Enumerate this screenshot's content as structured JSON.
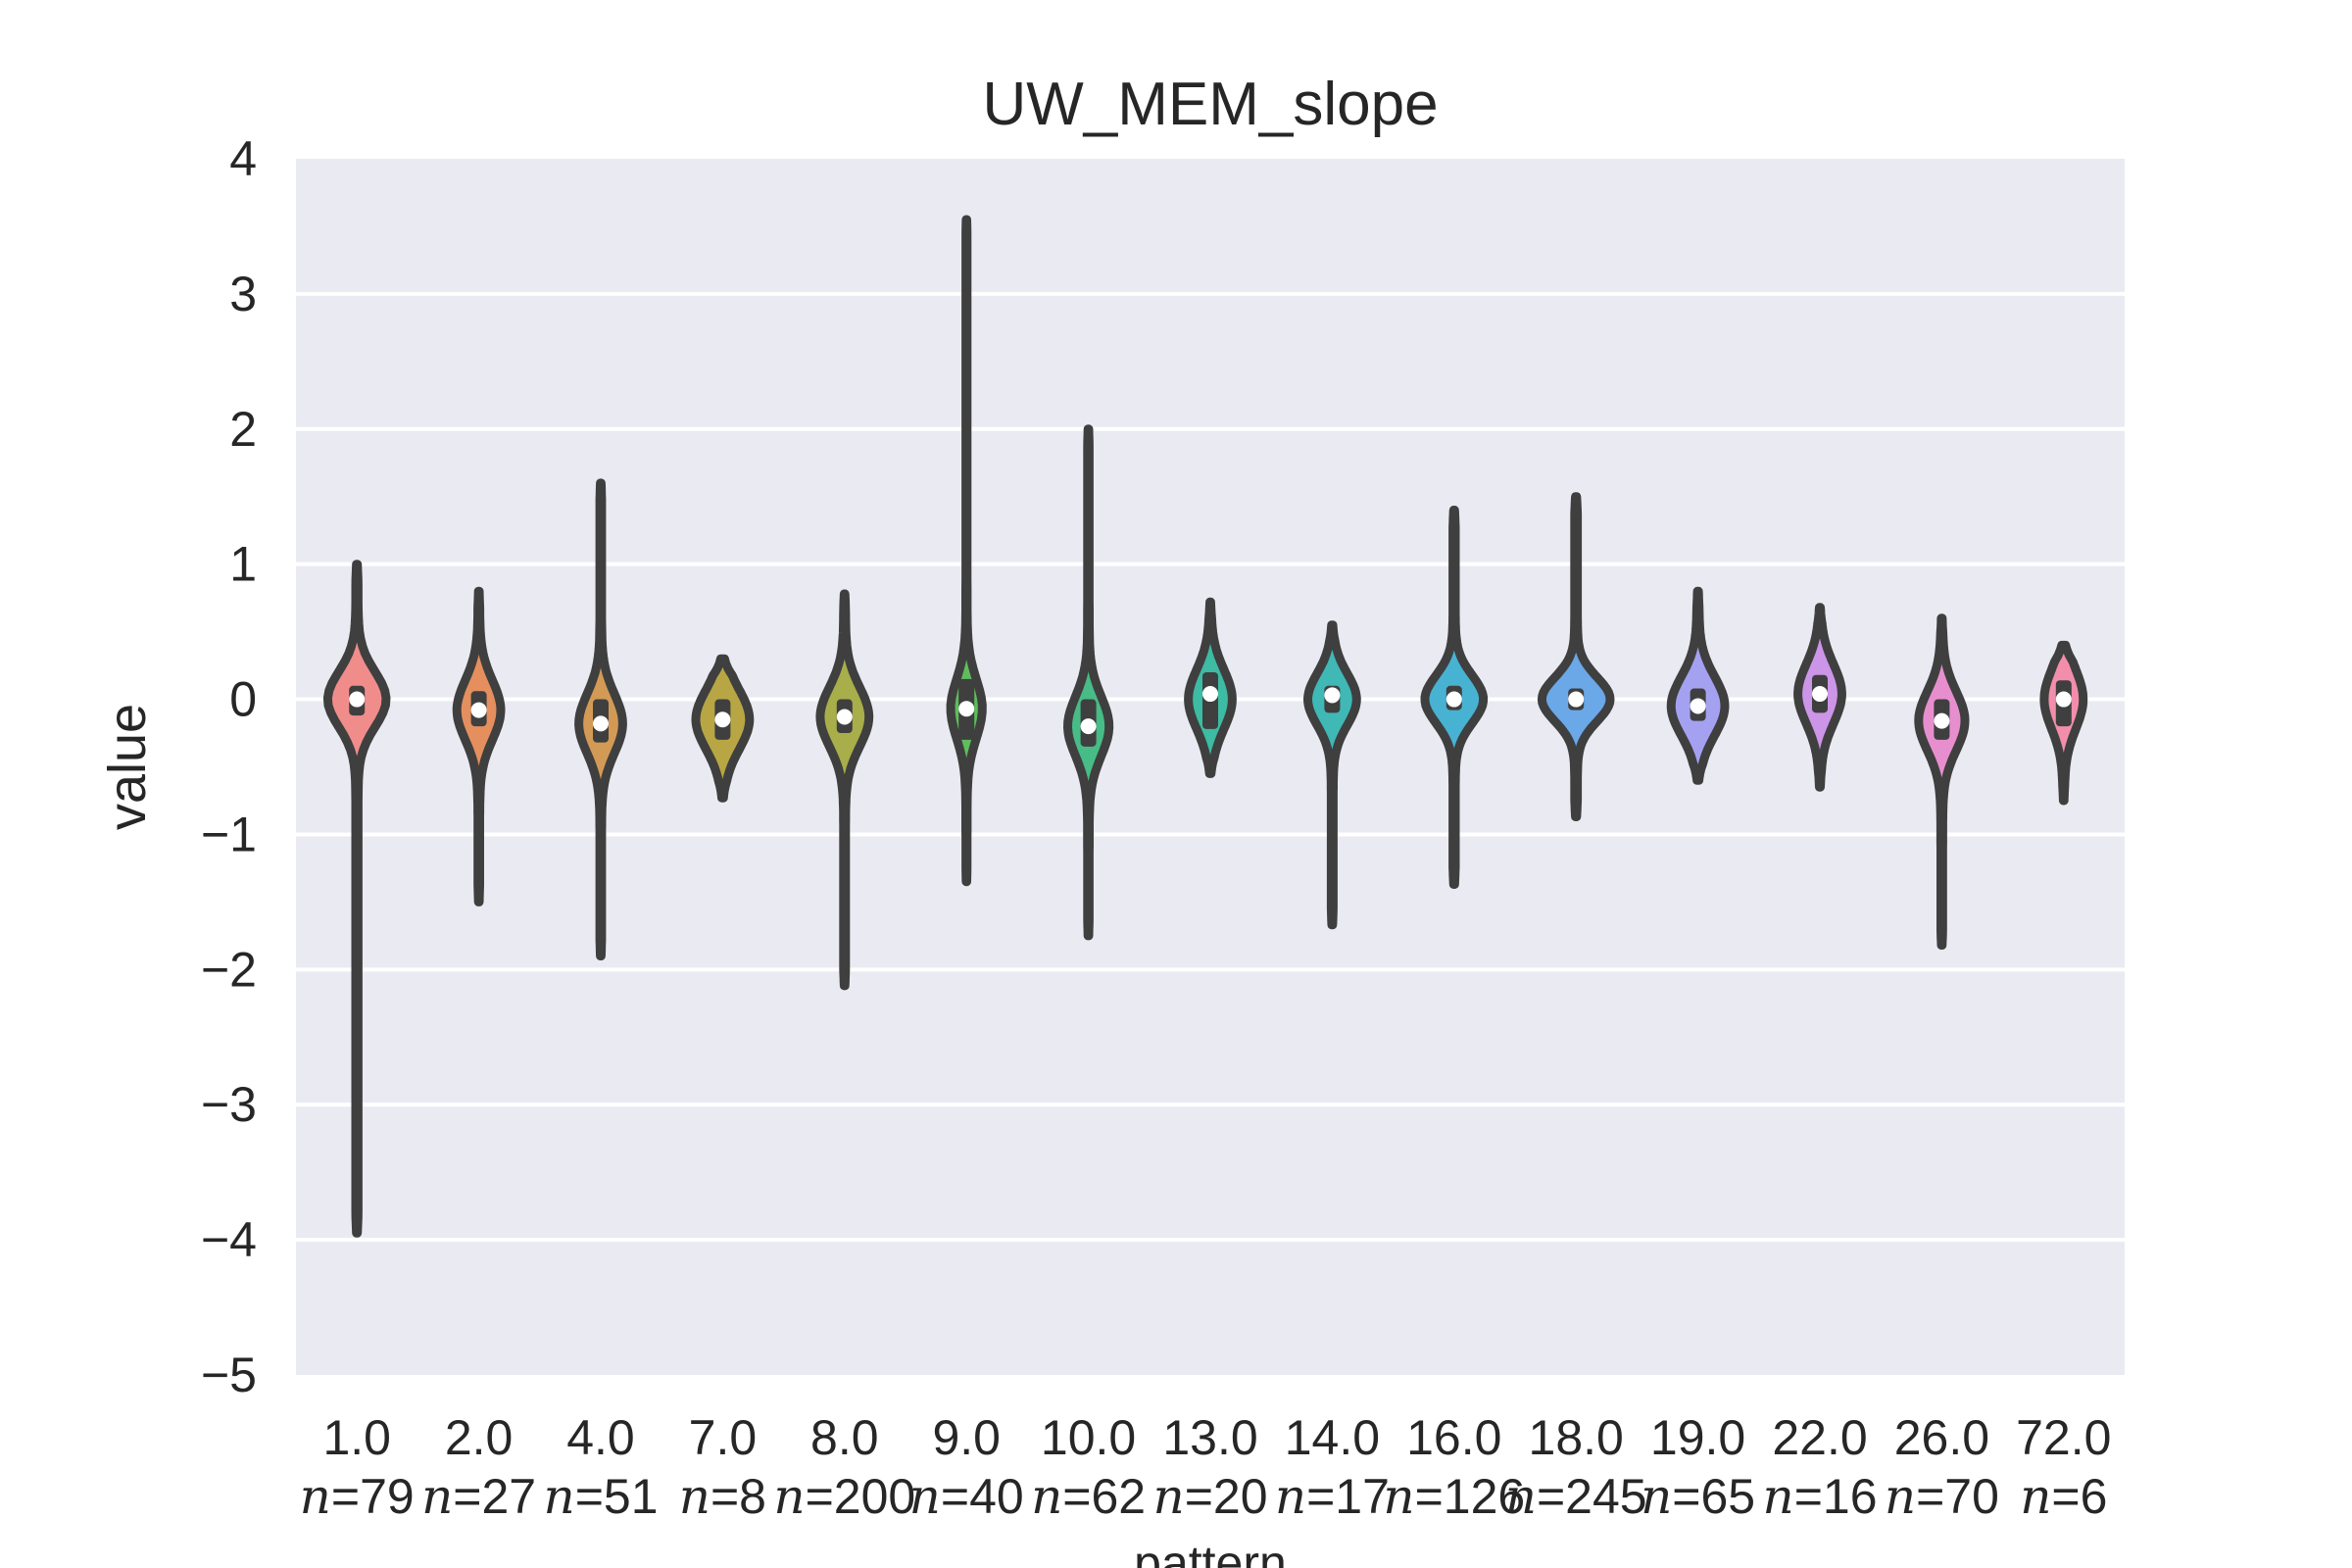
{
  "chart_data": {
    "type": "violin",
    "title": "UW_MEM_slope",
    "xlabel": "pattern",
    "ylabel": "value",
    "ylim": [
      -5,
      4
    ],
    "yticks": [
      4,
      3,
      2,
      1,
      0,
      -1,
      -2,
      -3,
      -4,
      -5
    ],
    "ytick_labels": [
      "4",
      "3",
      "2",
      "1",
      "0",
      "−1",
      "−2",
      "−3",
      "−4",
      "−5"
    ],
    "grid": true,
    "categories": [
      {
        "label": "1.0",
        "n_prefix": "n",
        "n_value": "=79",
        "color": "#f08d8b",
        "min": -3.95,
        "max": 1.0,
        "median": 0.0,
        "q1": -0.12,
        "q3": 0.1,
        "peak": 0.0,
        "maxw": 0.48
      },
      {
        "label": "2.0",
        "n_prefix": "n",
        "n_value": "=27",
        "color": "#e58f5f",
        "min": -1.5,
        "max": 0.8,
        "median": -0.08,
        "q1": -0.2,
        "q3": 0.06,
        "peak": -0.08,
        "maxw": 0.36
      },
      {
        "label": "4.0",
        "n_prefix": "n",
        "n_value": "=51",
        "color": "#d39a56",
        "min": -1.9,
        "max": 1.6,
        "median": -0.18,
        "q1": -0.32,
        "q3": 0.0,
        "peak": -0.18,
        "maxw": 0.36
      },
      {
        "label": "7.0",
        "n_prefix": "n",
        "n_value": "=8",
        "color": "#b8a644",
        "min": -0.73,
        "max": 0.3,
        "median": -0.15,
        "q1": -0.3,
        "q3": 0.0,
        "peak": -0.15,
        "maxw": 0.44
      },
      {
        "label": "8.0",
        "n_prefix": "n",
        "n_value": "=200",
        "color": "#a8ae4a",
        "min": -2.12,
        "max": 0.78,
        "median": -0.13,
        "q1": -0.25,
        "q3": 0.0,
        "peak": -0.13,
        "maxw": 0.4
      },
      {
        "label": "9.0",
        "n_prefix": "n",
        "n_value": "=40",
        "color": "#5fbd5c",
        "min": -1.35,
        "max": 3.55,
        "median": -0.07,
        "q1": -0.3,
        "q3": 0.15,
        "peak": -0.07,
        "maxw": 0.26
      },
      {
        "label": "10.0",
        "n_prefix": "n",
        "n_value": "=62",
        "color": "#48bc86",
        "min": -1.75,
        "max": 2.0,
        "median": -0.2,
        "q1": -0.35,
        "q3": 0.0,
        "peak": -0.2,
        "maxw": 0.34
      },
      {
        "label": "13.0",
        "n_prefix": "n",
        "n_value": "=20",
        "color": "#3dbba3",
        "min": -0.55,
        "max": 0.72,
        "median": 0.04,
        "q1": -0.22,
        "q3": 0.2,
        "peak": 0.0,
        "maxw": 0.36
      },
      {
        "label": "14.0",
        "n_prefix": "n",
        "n_value": "=17",
        "color": "#3fb8b6",
        "min": -1.67,
        "max": 0.55,
        "median": 0.03,
        "q1": -0.1,
        "q3": 0.1,
        "peak": 0.0,
        "maxw": 0.4
      },
      {
        "label": "16.0",
        "n_prefix": "n",
        "n_value": "=126",
        "color": "#48b2d3",
        "min": -1.37,
        "max": 1.4,
        "median": 0.0,
        "q1": -0.08,
        "q3": 0.1,
        "peak": 0.0,
        "maxw": 0.48
      },
      {
        "label": "18.0",
        "n_prefix": "n",
        "n_value": "=245",
        "color": "#6aa8e8",
        "min": -0.87,
        "max": 1.5,
        "median": 0.0,
        "q1": -0.08,
        "q3": 0.08,
        "peak": 0.0,
        "maxw": 0.56
      },
      {
        "label": "19.0",
        "n_prefix": "n",
        "n_value": "=65",
        "color": "#a4a2f0",
        "min": -0.6,
        "max": 0.8,
        "median": -0.05,
        "q1": -0.16,
        "q3": 0.08,
        "peak": -0.05,
        "maxw": 0.44
      },
      {
        "label": "22.0",
        "n_prefix": "n",
        "n_value": "=16",
        "color": "#cc95e8",
        "min": -0.65,
        "max": 0.68,
        "median": 0.04,
        "q1": -0.1,
        "q3": 0.18,
        "peak": 0.04,
        "maxw": 0.36
      },
      {
        "label": "26.0",
        "n_prefix": "n",
        "n_value": "=70",
        "color": "#e78fce",
        "min": -1.82,
        "max": 0.6,
        "median": -0.16,
        "q1": -0.3,
        "q3": 0.0,
        "peak": -0.16,
        "maxw": 0.38
      },
      {
        "label": "72.0",
        "n_prefix": "n",
        "n_value": "=6",
        "color": "#f28eab",
        "min": -0.75,
        "max": 0.4,
        "median": 0.0,
        "q1": -0.2,
        "q3": 0.14,
        "peak": 0.0,
        "maxw": 0.32
      }
    ]
  }
}
